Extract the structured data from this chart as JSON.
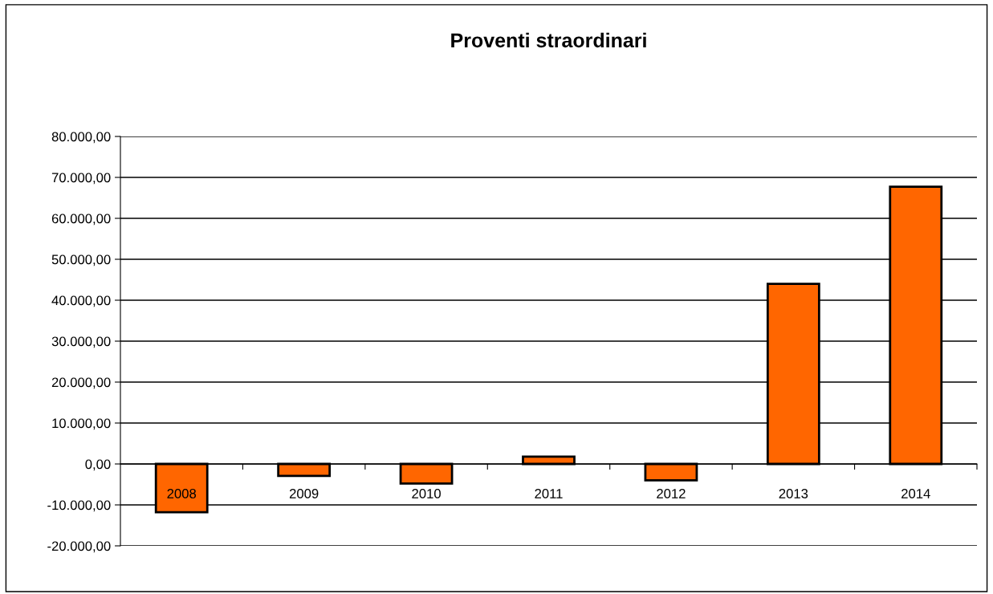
{
  "chart_data": {
    "type": "bar",
    "title": "Proventi straordinari",
    "categories": [
      "2008",
      "2009",
      "2010",
      "2011",
      "2012",
      "2013",
      "2014"
    ],
    "values": [
      -11800,
      -2900,
      -4800,
      1800,
      -4000,
      44000,
      67700
    ],
    "color": "#ff6600",
    "ylim": [
      -20000,
      80000
    ],
    "yticks": [
      {
        "value": -20000,
        "label": "-20.000,00"
      },
      {
        "value": -10000,
        "label": "-10.000,00"
      },
      {
        "value": 0,
        "label": "0,00"
      },
      {
        "value": 10000,
        "label": "10.000,00"
      },
      {
        "value": 20000,
        "label": "20.000,00"
      },
      {
        "value": 30000,
        "label": "30.000,00"
      },
      {
        "value": 40000,
        "label": "40.000,00"
      },
      {
        "value": 50000,
        "label": "50.000,00"
      },
      {
        "value": 60000,
        "label": "60.000,00"
      },
      {
        "value": 70000,
        "label": "70.000,00"
      },
      {
        "value": 80000,
        "label": "80.000,00"
      }
    ],
    "grid": "y",
    "legend": false
  }
}
